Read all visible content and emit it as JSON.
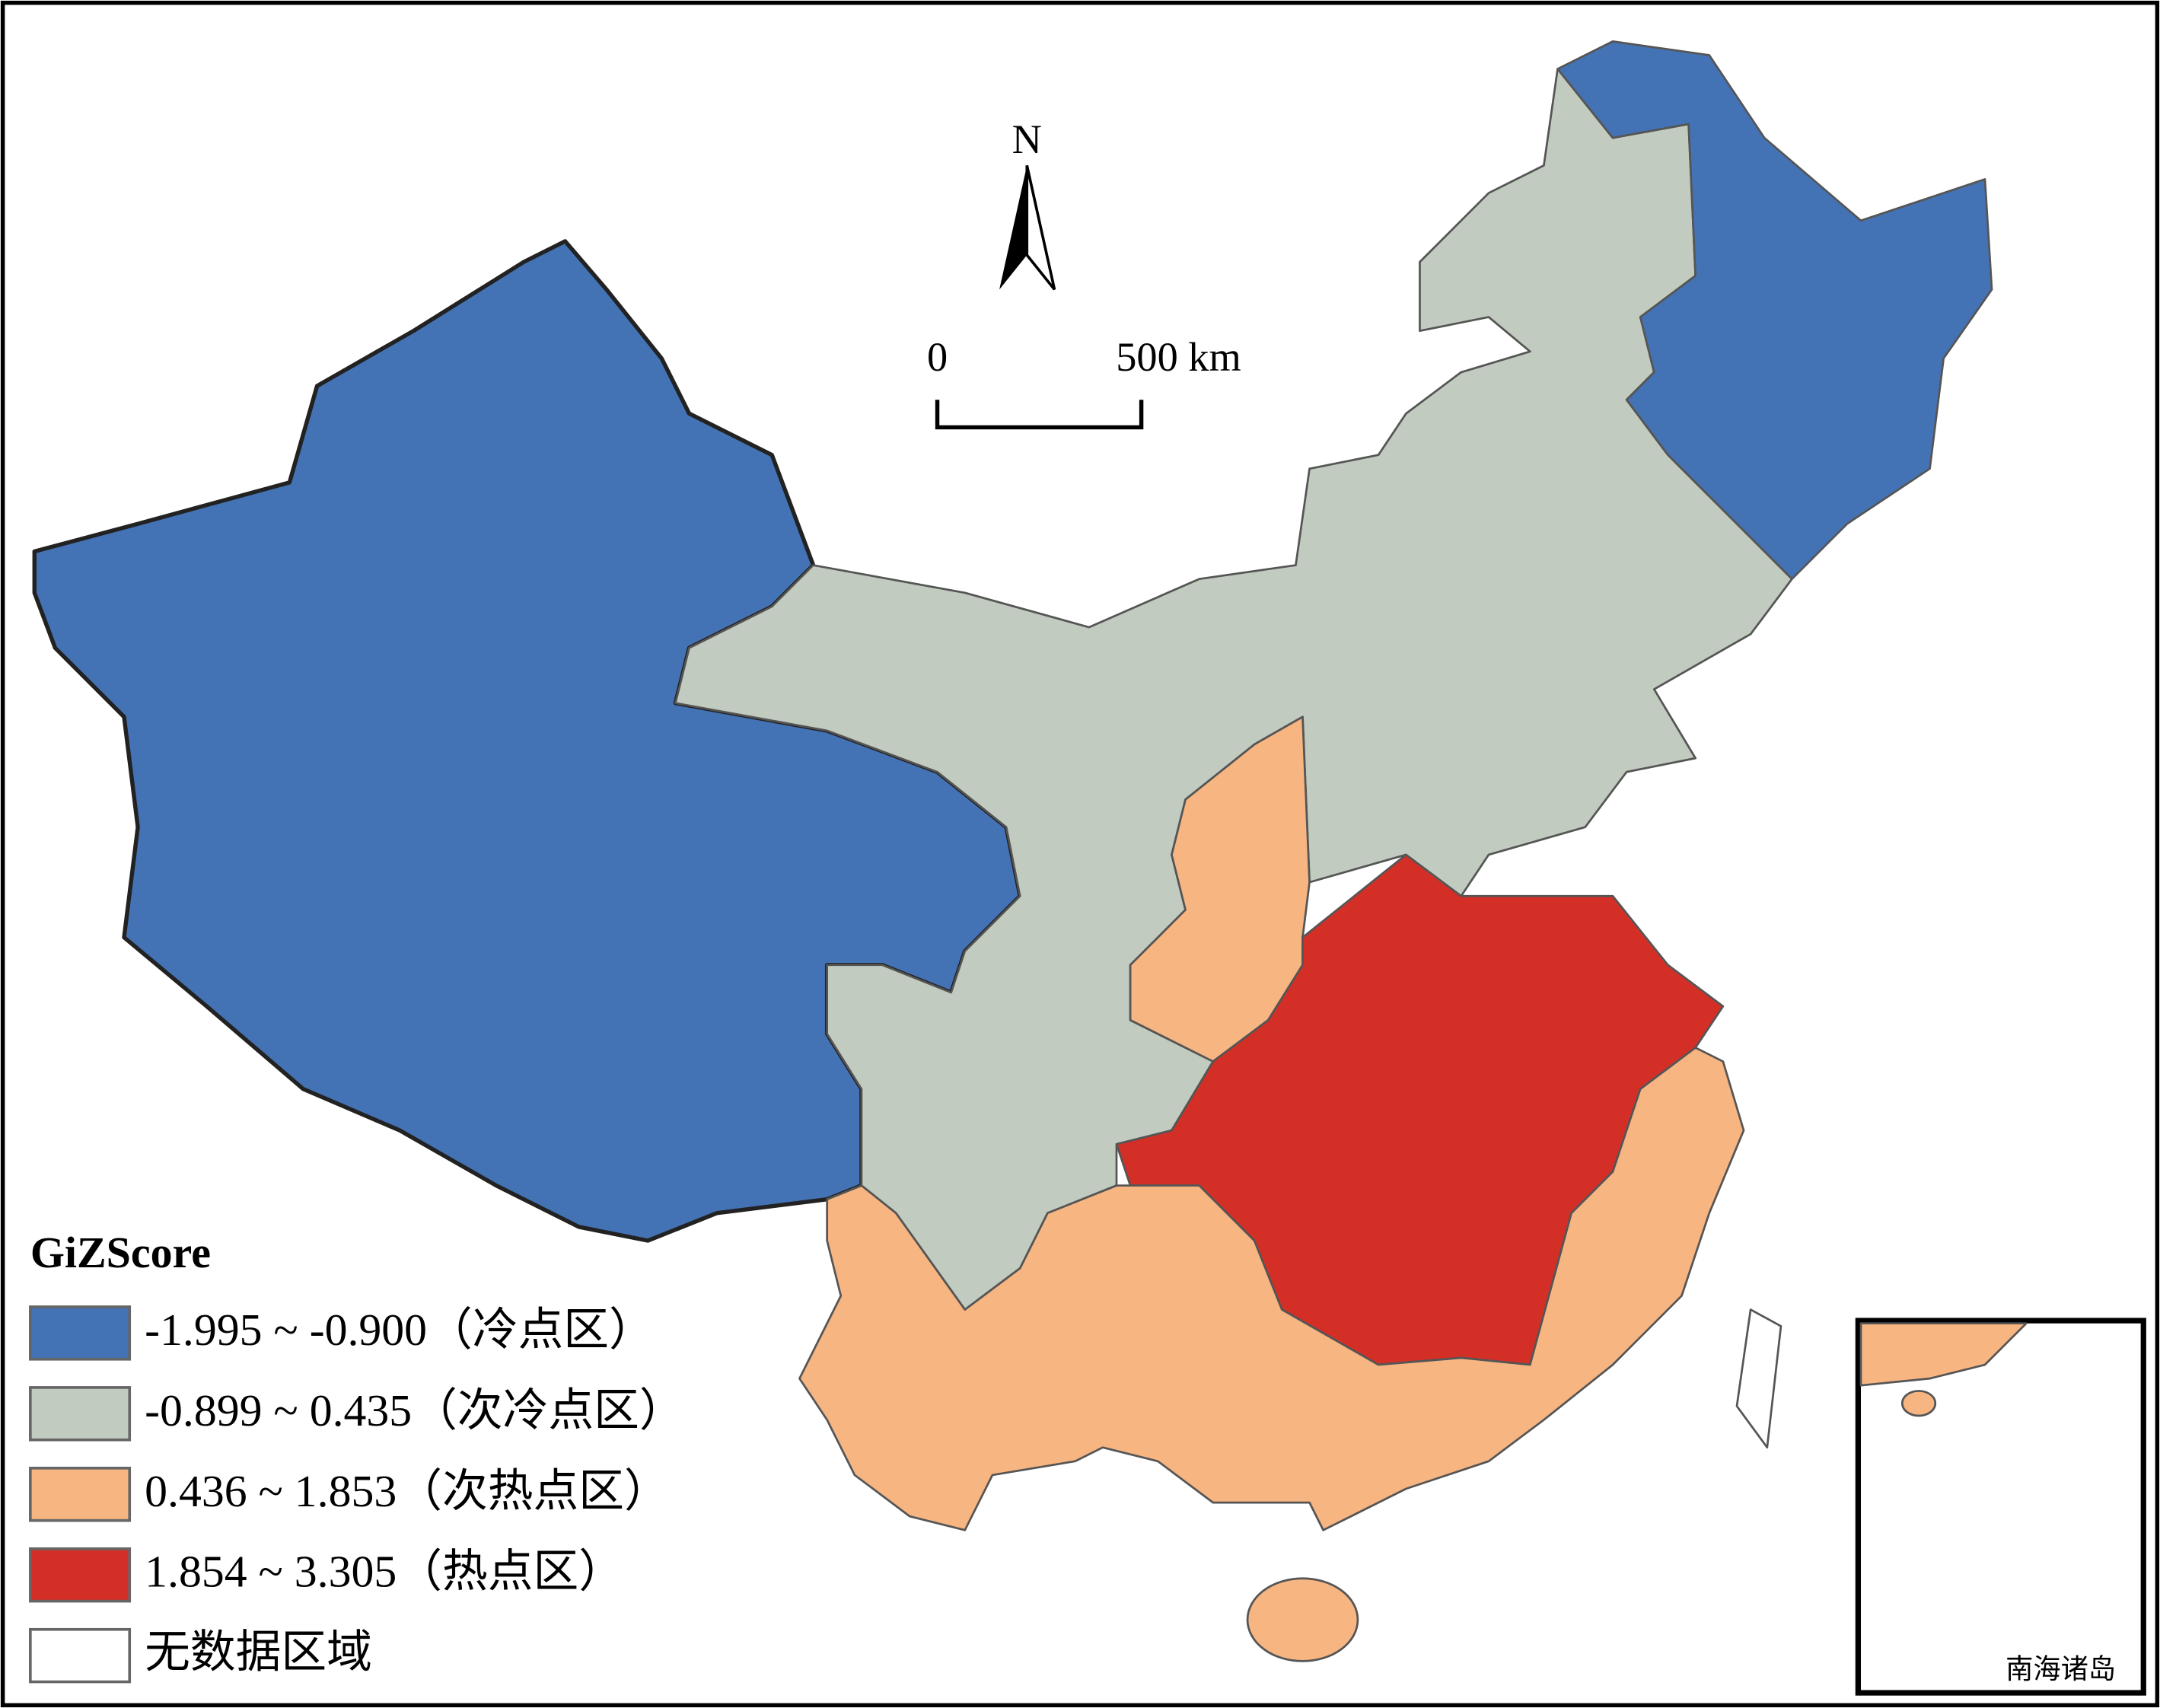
{
  "north_label": "N",
  "scale_bar": {
    "start_label": "0",
    "end_label": "500 km"
  },
  "legend": {
    "title": "GiZScore",
    "items": [
      {
        "label": "-1.995 ~ -0.900（冷点区）",
        "color": "#4473b5"
      },
      {
        "label": "-0.899 ~ 0.435（次冷点区）",
        "color": "#c2cbbf"
      },
      {
        "label": "0.436 ~ 1.853（次热点区）",
        "color": "#f7b582"
      },
      {
        "label": "1.854 ~ 3.305（热点区）",
        "color": "#d42f27"
      },
      {
        "label": "无数据区域",
        "color": "#ffffff"
      }
    ]
  },
  "inset_label": "南海诸岛"
}
